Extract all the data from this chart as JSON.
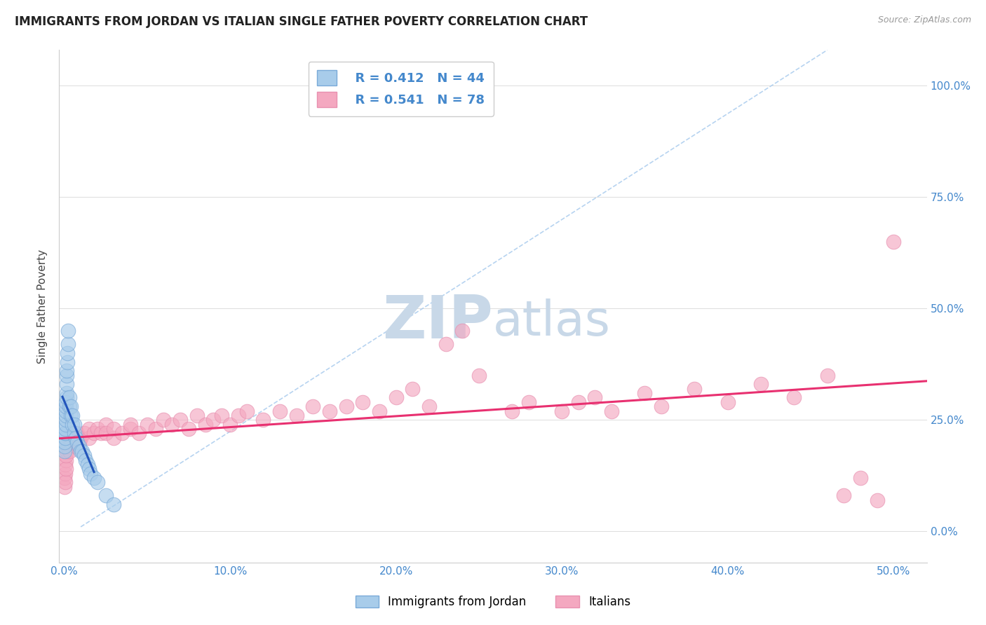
{
  "title": "IMMIGRANTS FROM JORDAN VS ITALIAN SINGLE FATHER POVERTY CORRELATION CHART",
  "source": "Source: ZipAtlas.com",
  "ylabel_text": "Single Father Poverty",
  "jordan_R": 0.412,
  "jordan_N": 44,
  "italian_R": 0.541,
  "italian_N": 78,
  "jordan_color": "#A8CCEA",
  "italian_color": "#F4A8C0",
  "jordan_line_color": "#2255BB",
  "italian_line_color": "#E83070",
  "jordan_edge": "#7AAAD8",
  "italian_edge": "#E890B0",
  "dash_color": "#AACCEE",
  "background_color": "#ffffff",
  "grid_color": "#dddddd",
  "watermark_color": "#C8D8E8",
  "jordan_x": [
    0.0002,
    0.0003,
    0.0004,
    0.0005,
    0.0006,
    0.0007,
    0.0008,
    0.0009,
    0.001,
    0.001,
    0.001,
    0.001,
    0.0012,
    0.0013,
    0.0014,
    0.0015,
    0.0016,
    0.0017,
    0.0018,
    0.002,
    0.0022,
    0.0025,
    0.003,
    0.003,
    0.004,
    0.004,
    0.005,
    0.005,
    0.006,
    0.006,
    0.007,
    0.008,
    0.009,
    0.01,
    0.011,
    0.012,
    0.013,
    0.014,
    0.015,
    0.016,
    0.018,
    0.02,
    0.025,
    0.03
  ],
  "jordan_y": [
    0.18,
    0.19,
    0.2,
    0.21,
    0.22,
    0.22,
    0.23,
    0.24,
    0.25,
    0.26,
    0.27,
    0.28,
    0.29,
    0.3,
    0.31,
    0.33,
    0.35,
    0.36,
    0.38,
    0.4,
    0.42,
    0.45,
    0.28,
    0.3,
    0.26,
    0.28,
    0.24,
    0.26,
    0.22,
    0.24,
    0.21,
    0.2,
    0.19,
    0.18,
    0.18,
    0.17,
    0.16,
    0.15,
    0.14,
    0.13,
    0.12,
    0.11,
    0.08,
    0.06
  ],
  "italian_x": [
    0.0002,
    0.0004,
    0.0005,
    0.0006,
    0.0008,
    0.001,
    0.001,
    0.0012,
    0.0015,
    0.002,
    0.002,
    0.003,
    0.003,
    0.004,
    0.005,
    0.006,
    0.007,
    0.008,
    0.009,
    0.01,
    0.012,
    0.015,
    0.015,
    0.018,
    0.02,
    0.022,
    0.025,
    0.025,
    0.03,
    0.03,
    0.035,
    0.04,
    0.04,
    0.045,
    0.05,
    0.055,
    0.06,
    0.065,
    0.07,
    0.075,
    0.08,
    0.085,
    0.09,
    0.095,
    0.1,
    0.105,
    0.11,
    0.12,
    0.13,
    0.14,
    0.15,
    0.16,
    0.17,
    0.18,
    0.19,
    0.2,
    0.21,
    0.22,
    0.23,
    0.24,
    0.25,
    0.27,
    0.28,
    0.3,
    0.31,
    0.32,
    0.33,
    0.35,
    0.36,
    0.38,
    0.4,
    0.42,
    0.44,
    0.46,
    0.47,
    0.48,
    0.49,
    0.5
  ],
  "italian_y": [
    0.1,
    0.12,
    0.13,
    0.11,
    0.15,
    0.16,
    0.14,
    0.17,
    0.18,
    0.19,
    0.2,
    0.18,
    0.21,
    0.2,
    0.22,
    0.21,
    0.19,
    0.22,
    0.2,
    0.21,
    0.22,
    0.21,
    0.23,
    0.22,
    0.23,
    0.22,
    0.24,
    0.22,
    0.21,
    0.23,
    0.22,
    0.23,
    0.24,
    0.22,
    0.24,
    0.23,
    0.25,
    0.24,
    0.25,
    0.23,
    0.26,
    0.24,
    0.25,
    0.26,
    0.24,
    0.26,
    0.27,
    0.25,
    0.27,
    0.26,
    0.28,
    0.27,
    0.28,
    0.29,
    0.27,
    0.3,
    0.32,
    0.28,
    0.42,
    0.45,
    0.35,
    0.27,
    0.29,
    0.27,
    0.29,
    0.3,
    0.27,
    0.31,
    0.28,
    0.32,
    0.29,
    0.33,
    0.3,
    0.35,
    0.08,
    0.12,
    0.07,
    0.65
  ],
  "xlim": [
    -0.003,
    0.52
  ],
  "ylim": [
    -0.07,
    1.08
  ],
  "x_ticks": [
    0.0,
    0.1,
    0.2,
    0.3,
    0.4,
    0.5
  ],
  "x_tick_labels": [
    "0.0%",
    "10.0%",
    "20.0%",
    "30.0%",
    "40.0%",
    "50.0%"
  ],
  "y_ticks": [
    0.0,
    0.25,
    0.5,
    0.75,
    1.0
  ],
  "y_tick_labels": [
    "0.0%",
    "25.0%",
    "50.0%",
    "75.0%",
    "100.0%"
  ]
}
